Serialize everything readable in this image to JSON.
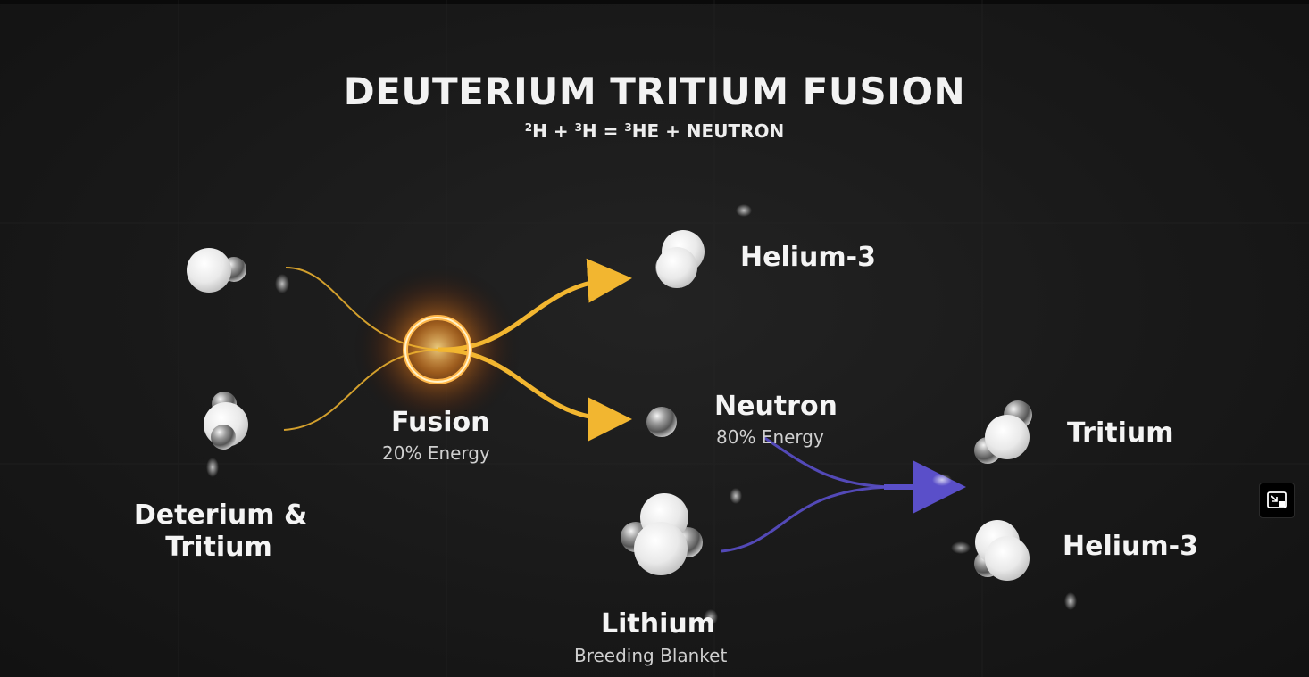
{
  "title": "DEUTERIUM TRITIUM FUSION",
  "equation": {
    "p1_sup": "2",
    "p1": "H + ",
    "p2_sup": "3",
    "p2": "H = ",
    "p3_sup": "3",
    "p3": "HE + NEUTRON"
  },
  "labels": {
    "reactants_line1": "Deterium &",
    "reactants_line2": "Tritium",
    "fusion": "Fusion",
    "fusion_energy": "20% Energy",
    "helium3_top": "Helium-3",
    "neutron": "Neutron",
    "neutron_energy": "80% Energy",
    "tritium": "Tritium",
    "helium3_bottom": "Helium-3",
    "lithium": "Lithium",
    "lithium_sub": "Breeding Blanket"
  },
  "colors": {
    "fusion_arrow": "#f2b630",
    "breeding_arrow": "#5a4fc9",
    "fusion_glow": "#ff8a1a"
  },
  "icons": {
    "pip": "picture-in-picture-icon"
  }
}
